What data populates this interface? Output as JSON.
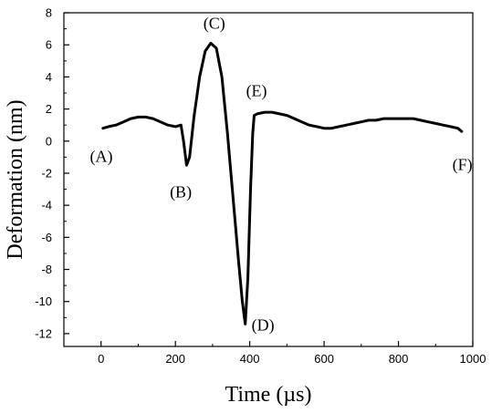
{
  "chart_data": {
    "type": "line",
    "title": "",
    "xlabel": "Time (µs)",
    "ylabel": "Deformation (nm)",
    "xlim": [
      -100,
      1000
    ],
    "ylim": [
      -12.8,
      8
    ],
    "x_ticks": [
      0,
      200,
      400,
      600,
      800,
      1000
    ],
    "y_ticks": [
      8,
      6,
      4,
      2,
      0,
      -2,
      -4,
      -6,
      -8,
      -10,
      -12
    ],
    "grid": false,
    "line_color": "#000000",
    "series": [
      {
        "x": [
          5,
          20,
          40,
          60,
          80,
          100,
          120,
          140,
          160,
          180,
          200,
          215,
          222,
          230,
          238,
          250,
          265,
          280,
          295,
          310,
          325,
          340,
          355,
          370,
          380,
          388,
          395,
          402,
          408,
          412,
          420,
          440,
          460,
          480,
          500,
          520,
          540,
          560,
          580,
          600,
          620,
          640,
          660,
          680,
          700,
          720,
          740,
          760,
          780,
          800,
          820,
          840,
          860,
          880,
          900,
          920,
          940,
          960,
          970
        ],
        "y": [
          0.8,
          0.9,
          1.0,
          1.2,
          1.4,
          1.5,
          1.5,
          1.4,
          1.2,
          1.0,
          0.9,
          1.0,
          0.0,
          -1.5,
          -1.0,
          1.5,
          4.0,
          5.6,
          6.1,
          5.8,
          4.0,
          0.5,
          -3.5,
          -7.5,
          -10.0,
          -11.4,
          -8.5,
          -3.0,
          0.5,
          1.6,
          1.7,
          1.8,
          1.8,
          1.7,
          1.6,
          1.4,
          1.2,
          1.0,
          0.9,
          0.8,
          0.8,
          0.9,
          1.0,
          1.1,
          1.2,
          1.3,
          1.3,
          1.4,
          1.4,
          1.4,
          1.4,
          1.4,
          1.3,
          1.2,
          1.1,
          1.0,
          0.9,
          0.8,
          0.6
        ]
      }
    ],
    "annotations": [
      {
        "text": "(A)",
        "x": -30,
        "y": -1.3
      },
      {
        "text": "(B)",
        "x": 185,
        "y": -3.5
      },
      {
        "text": "(C)",
        "x": 275,
        "y": 7.0
      },
      {
        "text": "(D)",
        "x": 405,
        "y": -11.8
      },
      {
        "text": "(E)",
        "x": 390,
        "y": 2.8
      },
      {
        "text": "(F)",
        "x": 945,
        "y": -1.8
      }
    ]
  }
}
